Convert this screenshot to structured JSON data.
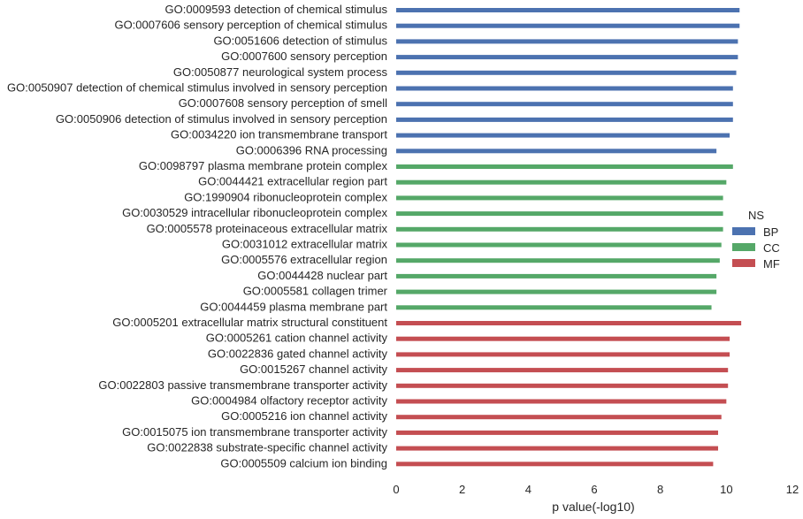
{
  "chart_data": {
    "type": "bar",
    "orientation": "horizontal",
    "xlabel": "p value(-log10)",
    "ylabel": "",
    "title": "",
    "xlim": [
      0,
      12
    ],
    "xticks": [
      0,
      2,
      4,
      6,
      8,
      10,
      12
    ],
    "grid": false,
    "legend": {
      "title": "NS",
      "placement": "right",
      "entries": [
        {
          "name": "BP",
          "color": "#4c72b0"
        },
        {
          "name": "CC",
          "color": "#55a868"
        },
        {
          "name": "MF",
          "color": "#c44e52"
        }
      ]
    },
    "bars": [
      {
        "label": "GO:0009593 detection of chemical stimulus",
        "value": 10.4,
        "ns": "BP"
      },
      {
        "label": "GO:0007606 sensory perception of chemical stimulus",
        "value": 10.4,
        "ns": "BP"
      },
      {
        "label": "GO:0051606 detection of stimulus",
        "value": 10.35,
        "ns": "BP"
      },
      {
        "label": "GO:0007600 sensory perception",
        "value": 10.35,
        "ns": "BP"
      },
      {
        "label": "GO:0050877 neurological system process",
        "value": 10.3,
        "ns": "BP"
      },
      {
        "label": "GO:0050907 detection of chemical stimulus involved in sensory perception",
        "value": 10.2,
        "ns": "BP"
      },
      {
        "label": "GO:0007608 sensory perception of smell",
        "value": 10.2,
        "ns": "BP"
      },
      {
        "label": "GO:0050906 detection of stimulus involved in sensory perception",
        "value": 10.2,
        "ns": "BP"
      },
      {
        "label": "GO:0034220 ion transmembrane transport",
        "value": 10.1,
        "ns": "BP"
      },
      {
        "label": "GO:0006396 RNA processing",
        "value": 9.7,
        "ns": "BP"
      },
      {
        "label": "GO:0098797 plasma membrane protein complex",
        "value": 10.2,
        "ns": "CC"
      },
      {
        "label": "GO:0044421 extracellular region part",
        "value": 10.0,
        "ns": "CC"
      },
      {
        "label": "GO:1990904 ribonucleoprotein complex",
        "value": 9.9,
        "ns": "CC"
      },
      {
        "label": "GO:0030529 intracellular ribonucleoprotein complex",
        "value": 9.9,
        "ns": "CC"
      },
      {
        "label": "GO:0005578 proteinaceous extracellular matrix",
        "value": 9.9,
        "ns": "CC"
      },
      {
        "label": "GO:0031012 extracellular matrix",
        "value": 9.85,
        "ns": "CC"
      },
      {
        "label": "GO:0005576 extracellular region",
        "value": 9.8,
        "ns": "CC"
      },
      {
        "label": "GO:0044428 nuclear part",
        "value": 9.7,
        "ns": "CC"
      },
      {
        "label": "GO:0005581 collagen trimer",
        "value": 9.7,
        "ns": "CC"
      },
      {
        "label": "GO:0044459 plasma membrane part",
        "value": 9.55,
        "ns": "CC"
      },
      {
        "label": "GO:0005201 extracellular matrix structural constituent",
        "value": 10.45,
        "ns": "MF"
      },
      {
        "label": "GO:0005261 cation channel activity",
        "value": 10.1,
        "ns": "MF"
      },
      {
        "label": "GO:0022836 gated channel activity",
        "value": 10.1,
        "ns": "MF"
      },
      {
        "label": "GO:0015267 channel activity",
        "value": 10.05,
        "ns": "MF"
      },
      {
        "label": "GO:0022803 passive transmembrane transporter activity",
        "value": 10.05,
        "ns": "MF"
      },
      {
        "label": "GO:0004984 olfactory receptor activity",
        "value": 10.0,
        "ns": "MF"
      },
      {
        "label": "GO:0005216 ion channel activity",
        "value": 9.85,
        "ns": "MF"
      },
      {
        "label": "GO:0015075 ion transmembrane transporter activity",
        "value": 9.75,
        "ns": "MF"
      },
      {
        "label": "GO:0022838 substrate-specific channel activity",
        "value": 9.75,
        "ns": "MF"
      },
      {
        "label": "GO:0005509 calcium ion binding",
        "value": 9.6,
        "ns": "MF"
      }
    ]
  }
}
